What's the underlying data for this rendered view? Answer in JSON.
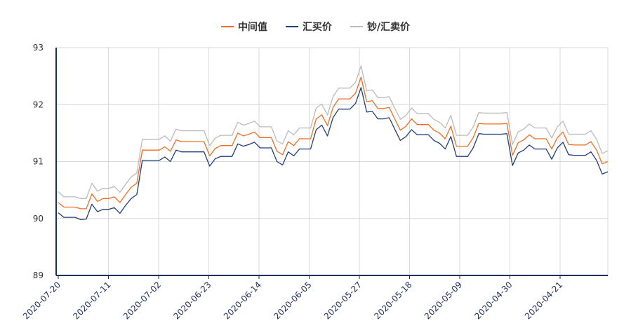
{
  "chart_data": {
    "type": "line",
    "title": "",
    "xlabel": "",
    "ylabel": "",
    "ylim": [
      89,
      93
    ],
    "yticks": [
      "89",
      "90",
      "91",
      "92",
      "93"
    ],
    "grid": true,
    "legend_position": "top-center",
    "x_tick_labels": [
      "2020-07-20",
      "2020-07-11",
      "2020-07-02",
      "2020-06-23",
      "2020-06-14",
      "2020-06-05",
      "2020-05-27",
      "2020-05-18",
      "2020-05-09",
      "2020-04-30",
      "2020-04-21"
    ],
    "series": [
      {
        "name": "中间值",
        "color": "#f26b21",
        "values": [
          90.28,
          90.2,
          90.2,
          90.2,
          90.17,
          90.17,
          90.43,
          90.3,
          90.35,
          90.35,
          90.38,
          90.28,
          90.42,
          90.55,
          90.62,
          91.2,
          91.2,
          91.2,
          91.2,
          91.26,
          91.18,
          91.38,
          91.35,
          91.35,
          91.35,
          91.35,
          91.35,
          91.1,
          91.23,
          91.28,
          91.28,
          91.28,
          91.5,
          91.45,
          91.48,
          91.52,
          91.42,
          91.42,
          91.42,
          91.18,
          91.12,
          91.35,
          91.28,
          91.4,
          91.4,
          91.4,
          91.75,
          91.82,
          91.63,
          91.95,
          92.1,
          92.1,
          92.1,
          92.2,
          92.48,
          92.05,
          92.07,
          91.93,
          91.93,
          91.95,
          91.75,
          91.55,
          91.62,
          91.75,
          91.65,
          91.65,
          91.65,
          91.55,
          91.5,
          91.4,
          91.62,
          91.27,
          91.27,
          91.27,
          91.42,
          91.67,
          91.66,
          91.66,
          91.66,
          91.66,
          91.67,
          91.11,
          91.33,
          91.38,
          91.47,
          91.4,
          91.4,
          91.4,
          91.22,
          91.42,
          91.52,
          91.3,
          91.29,
          91.29,
          91.29,
          91.35,
          91.2,
          90.96,
          91.0
        ]
      },
      {
        "name": "汇买价",
        "color": "#1f3f7a",
        "values": [
          90.1,
          90.02,
          90.02,
          90.02,
          89.98,
          89.99,
          90.25,
          90.12,
          90.16,
          90.16,
          90.19,
          90.09,
          90.23,
          90.35,
          90.42,
          91.02,
          91.02,
          91.02,
          91.02,
          91.08,
          91.0,
          91.2,
          91.17,
          91.17,
          91.17,
          91.17,
          91.17,
          90.92,
          91.05,
          91.09,
          91.09,
          91.09,
          91.31,
          91.27,
          91.3,
          91.34,
          91.24,
          91.24,
          91.24,
          91.0,
          90.94,
          91.17,
          91.1,
          91.22,
          91.22,
          91.22,
          91.56,
          91.64,
          91.45,
          91.77,
          91.92,
          91.92,
          91.92,
          92.02,
          92.3,
          91.87,
          91.88,
          91.75,
          91.75,
          91.77,
          91.57,
          91.37,
          91.44,
          91.56,
          91.47,
          91.47,
          91.47,
          91.37,
          91.32,
          91.22,
          91.44,
          91.09,
          91.09,
          91.09,
          91.24,
          91.49,
          91.48,
          91.48,
          91.48,
          91.48,
          91.49,
          90.93,
          91.15,
          91.2,
          91.29,
          91.22,
          91.22,
          91.22,
          91.04,
          91.24,
          91.34,
          91.12,
          91.11,
          91.11,
          91.11,
          91.17,
          91.02,
          90.78,
          90.82
        ]
      },
      {
        "name": "钞/汇卖价",
        "color": "#bbbbbb",
        "values": [
          90.47,
          90.38,
          90.38,
          90.38,
          90.35,
          90.35,
          90.62,
          90.48,
          90.53,
          90.53,
          90.56,
          90.46,
          90.6,
          90.73,
          90.8,
          91.39,
          91.39,
          91.39,
          91.39,
          91.45,
          91.36,
          91.57,
          91.54,
          91.54,
          91.54,
          91.54,
          91.54,
          91.28,
          91.41,
          91.46,
          91.46,
          91.46,
          91.69,
          91.64,
          91.67,
          91.71,
          91.61,
          91.61,
          91.61,
          91.36,
          91.31,
          91.54,
          91.47,
          91.59,
          91.59,
          91.59,
          91.94,
          92.01,
          91.82,
          92.14,
          92.29,
          92.29,
          92.29,
          92.39,
          92.68,
          92.24,
          92.26,
          92.12,
          92.12,
          92.14,
          91.94,
          91.74,
          91.81,
          91.94,
          91.84,
          91.84,
          91.84,
          91.74,
          91.69,
          91.59,
          91.81,
          91.46,
          91.46,
          91.46,
          91.61,
          91.86,
          91.85,
          91.85,
          91.85,
          91.85,
          91.86,
          91.3,
          91.52,
          91.57,
          91.66,
          91.59,
          91.59,
          91.59,
          91.41,
          91.61,
          91.71,
          91.48,
          91.48,
          91.48,
          91.48,
          91.54,
          91.39,
          91.14,
          91.19
        ]
      }
    ]
  }
}
